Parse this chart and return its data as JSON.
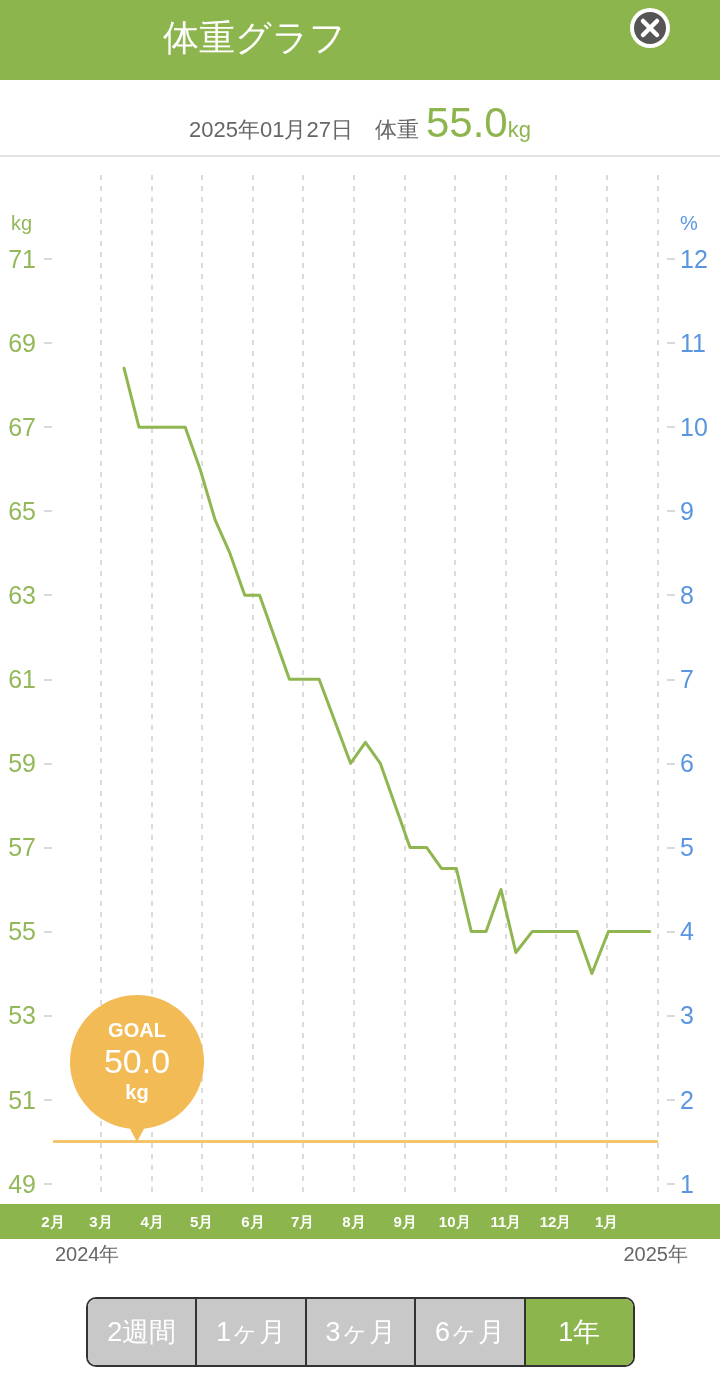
{
  "chart_data": {
    "type": "line",
    "title": "体重グラフ",
    "subtitle": "2025年01月27日　体重55.0kg",
    "ylabel": "kg",
    "y2label": "%",
    "x": [
      "2024-03-15",
      "2024-03-24",
      "2024-04-21",
      "2024-04-30",
      "2024-05-09",
      "2024-05-18",
      "2024-05-27",
      "2024-06-05",
      "2024-06-23",
      "2024-07-11",
      "2024-07-30",
      "2024-08-08",
      "2024-08-17",
      "2024-09-04",
      "2024-09-14",
      "2024-09-23",
      "2024-10-02",
      "2024-10-11",
      "2024-10-20",
      "2024-10-29",
      "2024-11-07",
      "2024-11-17",
      "2024-12-14",
      "2024-12-23",
      "2025-01-02",
      "2025-01-27"
    ],
    "series": [
      {
        "color": "#8fb650",
        "values": [
          68.4,
          67.0,
          67.0,
          66.0,
          64.8,
          64.0,
          63.0,
          63.0,
          61.0,
          61.0,
          59.0,
          59.5,
          59.0,
          57.0,
          57.0,
          56.5,
          56.5,
          55.0,
          55.0,
          56.0,
          54.5,
          55.0,
          55.0,
          54.0,
          55.0,
          55.0
        ]
      }
    ],
    "xlim": [
      "2024-02-01",
      "2025-02-01"
    ],
    "xticks": [
      {
        "value": "2024-02-01",
        "label": "2月"
      },
      {
        "value": "2024-03-01",
        "label": "3月"
      },
      {
        "value": "2024-04-01",
        "label": "4月"
      },
      {
        "value": "2024-05-01",
        "label": "5月"
      },
      {
        "value": "2024-06-01",
        "label": "6月"
      },
      {
        "value": "2024-07-01",
        "label": "7月"
      },
      {
        "value": "2024-08-01",
        "label": "8月"
      },
      {
        "value": "2024-09-01",
        "label": "9月"
      },
      {
        "value": "2024-10-01",
        "label": "10月"
      },
      {
        "value": "2024-11-01",
        "label": "11月"
      },
      {
        "value": "2024-12-01",
        "label": "12月"
      },
      {
        "value": "2025-01-01",
        "label": "1月"
      },
      {
        "value": "2025-02-01",
        "label": null
      }
    ],
    "ylim": [
      48.8,
      73
    ],
    "yticks": [
      49,
      51,
      53,
      55,
      57,
      59,
      61,
      63,
      65,
      67,
      69,
      71
    ],
    "y2lim": [
      0.9,
      13
    ],
    "y2ticks": [
      1,
      2,
      3,
      4,
      5,
      6,
      7,
      8,
      9,
      10,
      11,
      12
    ],
    "ref_lines": [
      {
        "axis": "y",
        "value": 50.0,
        "label": "GOAL\n50.0\nkg",
        "color": "#f3bb55"
      }
    ],
    "annotations": [
      "2024年",
      "2025年",
      "2週間",
      "1ヶ月",
      "3ヶ月",
      "6ヶ月",
      "1年"
    ],
    "grid": "x",
    "marker": "none",
    "line_style": "solid"
  }
}
